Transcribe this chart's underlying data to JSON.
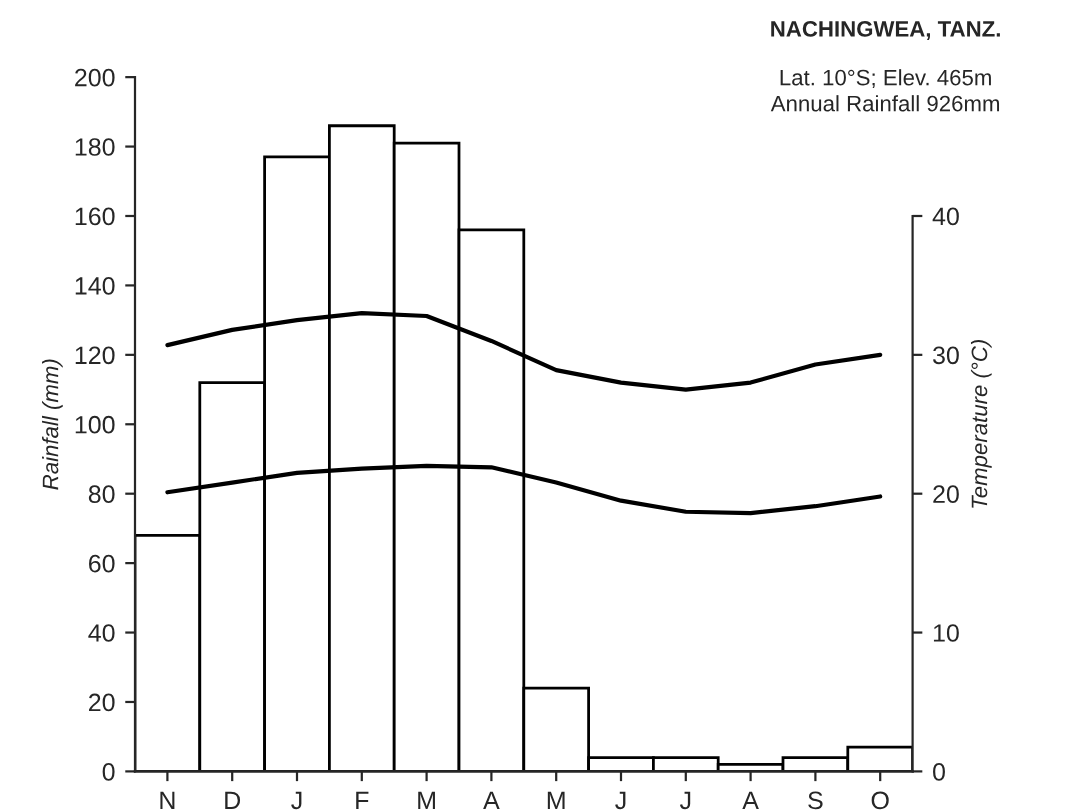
{
  "chart_data": {
    "type": "bar",
    "title": "NACHINGWEA, TANZ.",
    "annotations": [
      "Lat. 10°S; Elev. 465m",
      "Annual Rainfall 926mm"
    ],
    "categories": [
      "N",
      "D",
      "J",
      "F",
      "M",
      "A",
      "M",
      "J",
      "J",
      "A",
      "S",
      "O"
    ],
    "series": [
      {
        "color": "#ffffff",
        "values": [
          68,
          112,
          177,
          186,
          181,
          156,
          24,
          4,
          4,
          2,
          4,
          7
        ]
      },
      {
        "type": "line",
        "axis": "y2",
        "color": "#000000",
        "values": [
          30.7,
          31.8,
          32.5,
          33,
          32.8,
          31,
          28.9,
          28,
          27.5,
          28,
          29.3,
          30
        ]
      },
      {
        "type": "line",
        "axis": "y2",
        "color": "#000000",
        "values": [
          20.1,
          20.8,
          21.5,
          21.8,
          22,
          21.9,
          20.8,
          19.5,
          18.7,
          18.6,
          19.1,
          19.8
        ]
      }
    ],
    "ylabel": "Rainfall (mm)",
    "y2label": "Temperature (°C)",
    "ylim": [
      0,
      200
    ],
    "yticks": [
      0,
      20,
      40,
      60,
      80,
      100,
      120,
      140,
      160,
      180,
      200
    ],
    "y2lim": [
      0,
      50
    ],
    "y2ticks": [
      0,
      10,
      20,
      30,
      40
    ],
    "grid": false,
    "legend": false,
    "marker": "none",
    "line_style": "solid"
  }
}
